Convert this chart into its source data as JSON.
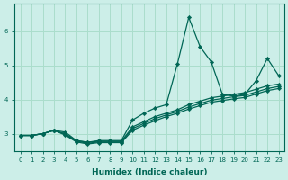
{
  "xlabel": "Humidex (Indice chaleur)",
  "bg_color": "#cceee8",
  "grid_color": "#aaddcc",
  "line_color": "#006655",
  "marker_color": "#006655",
  "xlim": [
    -0.5,
    23.5
  ],
  "ylim": [
    2.5,
    6.8
  ],
  "yticks": [
    3,
    4,
    5,
    6
  ],
  "xticks": [
    0,
    1,
    2,
    3,
    4,
    5,
    6,
    7,
    8,
    9,
    10,
    11,
    12,
    13,
    14,
    15,
    16,
    17,
    18,
    19,
    20,
    21,
    22,
    23
  ],
  "lines": [
    [
      2.95,
      2.95,
      3.0,
      3.1,
      3.05,
      2.8,
      2.75,
      2.8,
      2.8,
      2.8,
      3.4,
      3.6,
      3.75,
      3.85,
      5.05,
      6.4,
      5.55,
      5.1,
      4.15,
      4.1,
      4.15,
      4.55,
      5.2,
      4.7
    ],
    [
      2.95,
      2.95,
      3.0,
      3.1,
      3.0,
      2.8,
      2.75,
      2.78,
      2.78,
      2.78,
      3.2,
      3.35,
      3.5,
      3.6,
      3.7,
      3.85,
      3.95,
      4.05,
      4.1,
      4.15,
      4.2,
      4.3,
      4.4,
      4.45
    ],
    [
      2.95,
      2.95,
      3.0,
      3.1,
      2.98,
      2.78,
      2.72,
      2.76,
      2.76,
      2.76,
      3.15,
      3.3,
      3.44,
      3.55,
      3.65,
      3.78,
      3.88,
      3.98,
      4.03,
      4.08,
      4.12,
      4.22,
      4.32,
      4.38
    ],
    [
      2.95,
      2.95,
      3.0,
      3.1,
      2.96,
      2.76,
      2.7,
      2.74,
      2.74,
      2.74,
      3.1,
      3.25,
      3.38,
      3.5,
      3.6,
      3.72,
      3.82,
      3.92,
      3.97,
      4.02,
      4.06,
      4.16,
      4.26,
      4.32
    ]
  ]
}
